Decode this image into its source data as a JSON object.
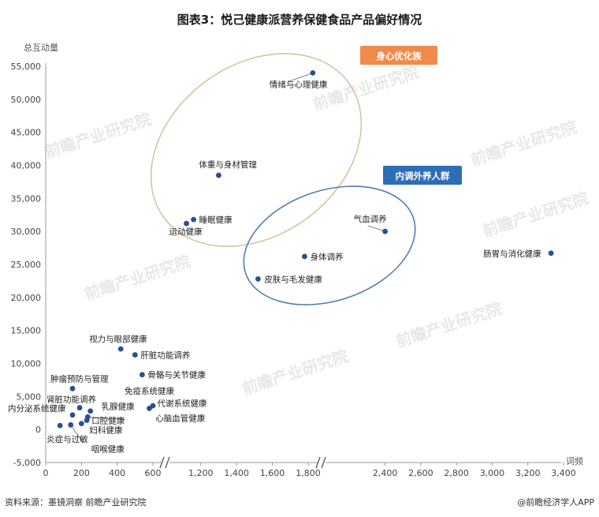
{
  "title": "图表3：悦己健康派营养保健食品产品偏好情况",
  "footer": {
    "source": "资料来源：墨镜洞察  前瞻产业研究院",
    "brand": "@前瞻经济学人APP"
  },
  "watermark": "前瞻产业研究院",
  "chart_data": {
    "type": "scatter",
    "title": "图表3：悦己健康派营养保健食品产品偏好情况",
    "xlabel": "词频",
    "ylabel": "总互动量",
    "ylim": [
      -5000,
      55000
    ],
    "y_ticks": [
      "-5,000",
      "0",
      "5,000",
      "10,000",
      "15,000",
      "20,000",
      "25,000",
      "30,000",
      "35,000",
      "40,000",
      "45,000",
      "50,000",
      "55,000"
    ],
    "x_axis_broken": true,
    "x_ticks": [
      "0",
      "200",
      "400",
      "600",
      "1,200",
      "1,400",
      "1,600",
      "1,800",
      "2,400",
      "2,600",
      "2,800",
      "3,000",
      "3,200",
      "3,400"
    ],
    "x_tick_values": [
      0,
      200,
      400,
      600,
      1200,
      1400,
      1600,
      1800,
      2400,
      2600,
      2800,
      3000,
      3200,
      3400
    ],
    "grid": false,
    "points": [
      {
        "label": "情绪与心理健康",
        "x": 1850,
        "y": 54000
      },
      {
        "label": "体重与身材管理",
        "x": 1300,
        "y": 38500
      },
      {
        "label": "睡眠健康",
        "x": 1160,
        "y": 31800
      },
      {
        "label": "运动健康",
        "x": 1120,
        "y": 31200
      },
      {
        "label": "气血调养",
        "x": 2400,
        "y": 30000
      },
      {
        "label": "肠胃与消化健康",
        "x": 3330,
        "y": 26700
      },
      {
        "label": "身体调养",
        "x": 1780,
        "y": 26200
      },
      {
        "label": "皮肤与毛发健康",
        "x": 1520,
        "y": 22800
      },
      {
        "label": "视力与眼部健康",
        "x": 420,
        "y": 12200
      },
      {
        "label": "肝脏功能调养",
        "x": 500,
        "y": 11300
      },
      {
        "label": "骨骼与关节健康",
        "x": 540,
        "y": 8300
      },
      {
        "label": "肿瘤预防与管理",
        "x": 150,
        "y": 6200
      },
      {
        "label": "免疫系统健康",
        "x": 600,
        "y": 3600
      },
      {
        "label": "代谢系统健康",
        "x": 580,
        "y": 3200
      },
      {
        "label": "肾脏功能调养",
        "x": 190,
        "y": 3300
      },
      {
        "label": "乳腺健康",
        "x": 250,
        "y": 2800
      },
      {
        "label": "内分泌系统健康",
        "x": 150,
        "y": 2200
      },
      {
        "label": "心脑血管健康",
        "x": 235,
        "y": 1900
      },
      {
        "label": "口腔健康",
        "x": 230,
        "y": 1400
      },
      {
        "label": "妇科健康",
        "x": 200,
        "y": 900
      },
      {
        "label": "炎症与过敏",
        "x": 80,
        "y": 600
      },
      {
        "label": "咽喉健康",
        "x": 140,
        "y": 700
      }
    ],
    "annotations": [
      {
        "text": "身心优化族",
        "color": "#f08a4b"
      },
      {
        "text": "内调外养人群",
        "color": "#2f6db5"
      }
    ],
    "colors": {
      "point": "#2a4e96",
      "ellipse_orange": "#d9c3a0",
      "ellipse_blue": "#4f7fb2",
      "tag_orange": "#f08a4b",
      "tag_blue": "#2f6db5"
    }
  }
}
